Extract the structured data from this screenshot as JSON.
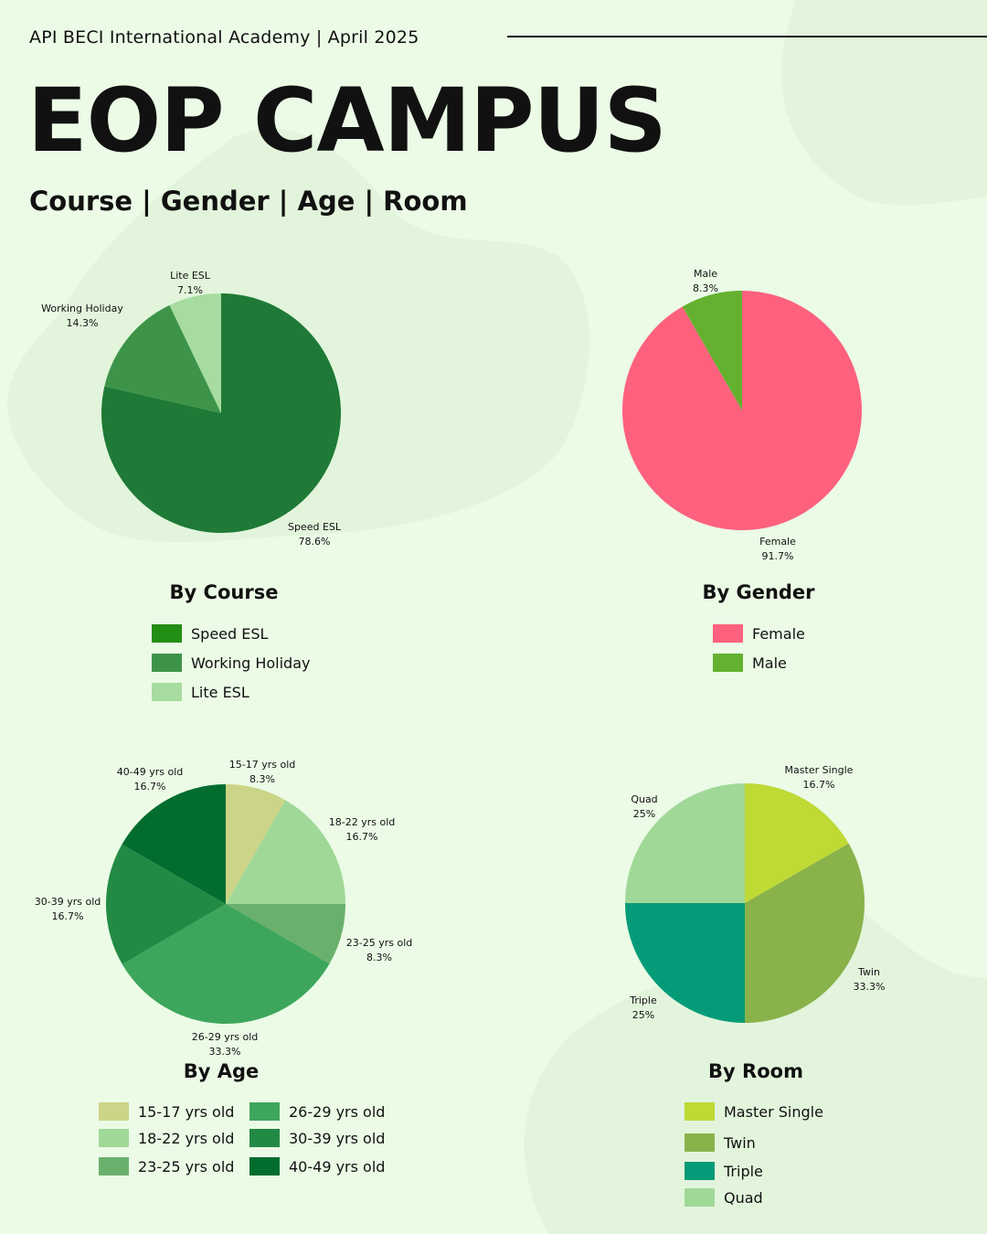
{
  "header": {
    "org": "API BECI International Academy  |  April 2025",
    "title": "EOP CAMPUS",
    "subtitle": "Course | Gender | Age | Room"
  },
  "chart_data": [
    {
      "type": "pie",
      "title": "By Course",
      "categories": [
        "Speed ESL",
        "Working Holiday",
        "Lite ESL"
      ],
      "values": [
        78.6,
        14.3,
        7.1
      ],
      "value_labels": [
        "78.6%",
        "14.3%",
        "7.1%"
      ],
      "colors": [
        "#1e7a36",
        "#3d9449",
        "#a6dca0"
      ],
      "legend_colors": [
        "#238e14",
        "#3d9449",
        "#a6dca0"
      ]
    },
    {
      "type": "pie",
      "title": "By Gender",
      "categories": [
        "Female",
        "Male"
      ],
      "values": [
        91.7,
        8.3
      ],
      "value_labels": [
        "91.7%",
        "8.3%"
      ],
      "colors": [
        "#fd617e",
        "#64b12f"
      ]
    },
    {
      "type": "pie",
      "title": "By Age",
      "categories": [
        "15-17 yrs old",
        "18-22 yrs old",
        "23-25 yrs old",
        "26-29 yrs old",
        "30-39 yrs old",
        "40-49 yrs old"
      ],
      "values": [
        8.3,
        16.7,
        8.3,
        33.3,
        16.7,
        16.7
      ],
      "value_labels": [
        "8.3%",
        "16.7%",
        "8.3%",
        "33.3%",
        "16.7%",
        "16.7%"
      ],
      "colors": [
        "#ccd487",
        "#a0d897",
        "#6ab06d",
        "#3da65c",
        "#228a44",
        "#036d30"
      ]
    },
    {
      "type": "pie",
      "title": "By Room",
      "categories": [
        "Master Single",
        "Twin",
        "Triple",
        "Quad"
      ],
      "values": [
        16.7,
        33.3,
        25,
        25
      ],
      "value_labels": [
        "16.7%",
        "33.3%",
        "25%",
        "25%"
      ],
      "colors": [
        "#bfd935",
        "#8ab24b",
        "#069b78",
        "#a0d898"
      ]
    }
  ]
}
